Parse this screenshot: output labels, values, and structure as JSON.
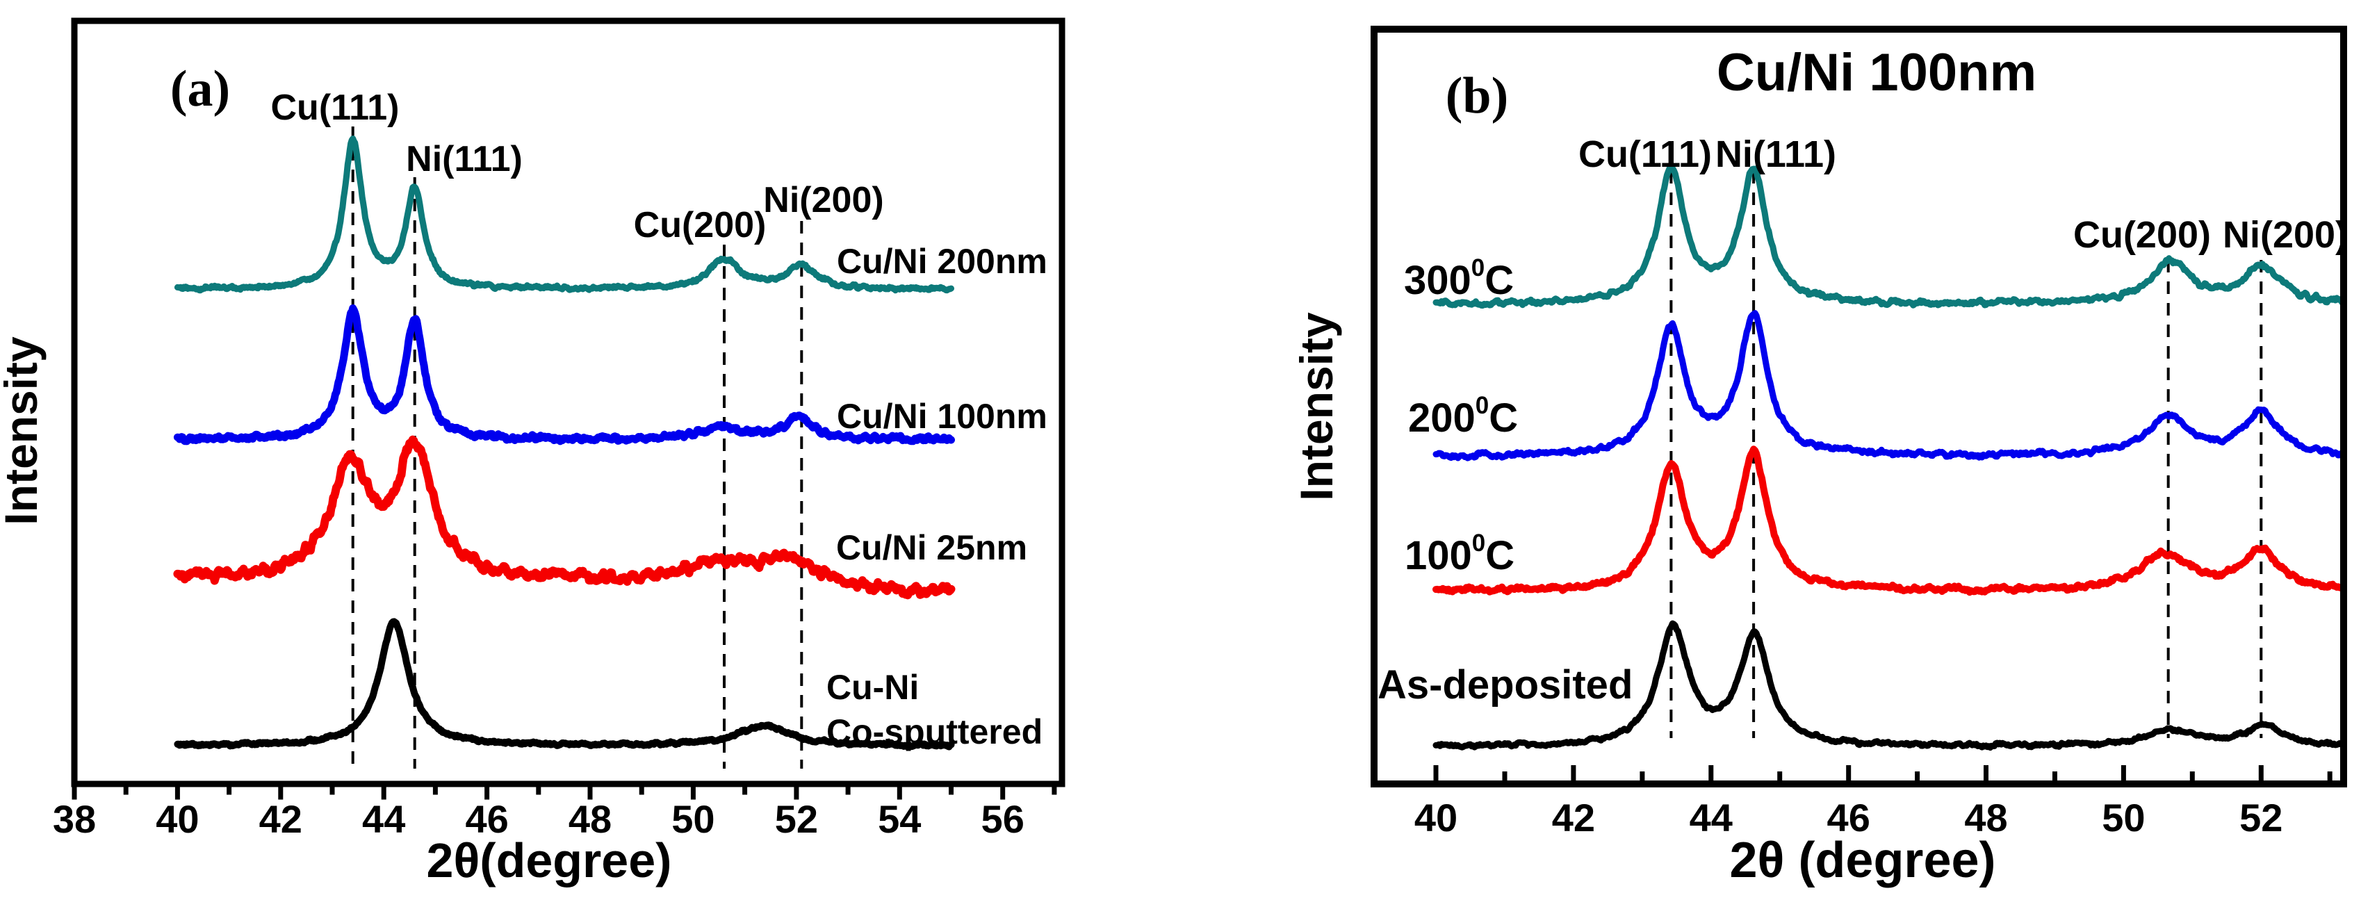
{
  "figure": {
    "background": "#ffffff",
    "description_colors": {
      "teal": "#0d7a7a",
      "blue": "#0000ee",
      "red": "#f50000",
      "black": "#000000"
    }
  },
  "chart_data": [
    {
      "panel": "a",
      "type": "line",
      "panel_label": "(a)",
      "title": "",
      "xlabel": "2θ(degree)",
      "ylabel": "Intensity",
      "xlim": [
        38,
        57.15
      ],
      "x_major_ticks": [
        38,
        40,
        42,
        44,
        46,
        48,
        50,
        52,
        54,
        56
      ],
      "x_minor_step": 1,
      "x_data_range": [
        40,
        55
      ],
      "grid": false,
      "y_axis_note": "arbitrary stacked intensity, no y ticks",
      "dashed_lines": [
        {
          "x": 43.4,
          "label": "Cu(111)"
        },
        {
          "x": 44.6,
          "label": "Ni(111)"
        },
        {
          "x": 50.6,
          "label": "Cu(200)"
        },
        {
          "x": 52.1,
          "label": "Ni(200)"
        }
      ],
      "series": [
        {
          "name": "Cu/Ni 200nm",
          "color": "#0d7a7a",
          "baseline_frac": 0.648,
          "peaks": [
            {
              "center": 43.4,
              "height": 0.192,
              "hwhm": 0.22
            },
            {
              "center": 44.6,
              "height": 0.13,
              "hwhm": 0.21
            },
            {
              "center": 50.6,
              "height": 0.039,
              "hwhm": 0.36
            },
            {
              "center": 52.1,
              "height": 0.03,
              "hwhm": 0.36
            }
          ]
        },
        {
          "name": "Cu/Ni 100nm",
          "color": "#0000ee",
          "baseline_frac": 0.451,
          "peaks": [
            {
              "center": 43.4,
              "height": 0.164,
              "hwhm": 0.24
            },
            {
              "center": 44.6,
              "height": 0.152,
              "hwhm": 0.22
            },
            {
              "center": 50.55,
              "height": 0.016,
              "hwhm": 0.5
            },
            {
              "center": 52.05,
              "height": 0.028,
              "hwhm": 0.33
            }
          ]
        },
        {
          "name": "Cu/Ni 25nm",
          "color": "#f50000",
          "baseline_frac": 0.268,
          "peaks": [
            {
              "center": 43.35,
              "height": 0.145,
              "hwhm": 0.45
            },
            {
              "center": 44.6,
              "height": 0.165,
              "hwhm": 0.42
            },
            {
              "center": 50.55,
              "height": 0.02,
              "hwhm": 0.9
            },
            {
              "center": 51.9,
              "height": 0.03,
              "hwhm": 0.75
            },
            {
              "center": 54.5,
              "height": -0.02,
              "hwhm": 2.5
            }
          ]
        },
        {
          "name": "Cu-Ni Co-sputtered",
          "name_lines": [
            "Cu-Ni",
            "Co-sputtered"
          ],
          "color": "#000000",
          "baseline_frac": 0.05,
          "peaks": [
            {
              "center": 44.2,
              "height": 0.164,
              "hwhm": 0.34
            },
            {
              "center": 51.35,
              "height": 0.026,
              "hwhm": 0.6
            }
          ]
        }
      ]
    },
    {
      "panel": "b",
      "type": "line",
      "panel_label": "(b)",
      "title": "Cu/Ni 100nm",
      "xlabel": "2θ (degree)",
      "ylabel": "Intensity",
      "xlim": [
        39.1,
        53.2
      ],
      "x_major_ticks": [
        40,
        42,
        44,
        46,
        48,
        50,
        52
      ],
      "x_minor_step": 1,
      "x_data_range": [
        40,
        53.18
      ],
      "grid": false,
      "y_axis_note": "arbitrary stacked intensity, no y ticks",
      "dashed_lines": [
        {
          "x": 43.42,
          "label": "Cu(111)"
        },
        {
          "x": 44.62,
          "label": "Ni(111)"
        },
        {
          "x": 50.65,
          "label": "Cu(200)"
        },
        {
          "x": 52.0,
          "label": "Ni(200)"
        }
      ],
      "series": [
        {
          "name": "300°C",
          "label_parts": {
            "base": "300",
            "sup": "0",
            "unit": "C"
          },
          "color": "#0d7a7a",
          "baseline_frac": 0.635,
          "peaks": [
            {
              "center": 43.42,
              "height": 0.176,
              "hwhm": 0.24
            },
            {
              "center": 44.62,
              "height": 0.176,
              "hwhm": 0.23
            },
            {
              "center": 50.68,
              "height": 0.056,
              "hwhm": 0.35
            },
            {
              "center": 52.02,
              "height": 0.049,
              "hwhm": 0.32
            }
          ]
        },
        {
          "name": "200°C",
          "label_parts": {
            "base": "200",
            "sup": "0",
            "unit": "C"
          },
          "color": "#0000ee",
          "baseline_frac": 0.434,
          "peaks": [
            {
              "center": 43.42,
              "height": 0.168,
              "hwhm": 0.25
            },
            {
              "center": 44.62,
              "height": 0.183,
              "hwhm": 0.24
            },
            {
              "center": 50.65,
              "height": 0.051,
              "hwhm": 0.37
            },
            {
              "center": 52.0,
              "height": 0.055,
              "hwhm": 0.32
            }
          ]
        },
        {
          "name": "100°C",
          "label_parts": {
            "base": "100",
            "sup": "0",
            "unit": "C"
          },
          "color": "#f50000",
          "baseline_frac": 0.255,
          "peaks": [
            {
              "center": 43.42,
              "height": 0.161,
              "hwhm": 0.26
            },
            {
              "center": 44.62,
              "height": 0.177,
              "hwhm": 0.25
            },
            {
              "center": 50.6,
              "height": 0.048,
              "hwhm": 0.45
            },
            {
              "center": 52.0,
              "height": 0.052,
              "hwhm": 0.34
            }
          ]
        },
        {
          "name": "As-deposited",
          "color": "#000000",
          "baseline_frac": 0.049,
          "peaks": [
            {
              "center": 43.45,
              "height": 0.155,
              "hwhm": 0.27
            },
            {
              "center": 44.63,
              "height": 0.145,
              "hwhm": 0.26
            },
            {
              "center": 50.7,
              "height": 0.022,
              "hwhm": 0.45
            },
            {
              "center": 52.05,
              "height": 0.026,
              "hwhm": 0.34
            }
          ]
        }
      ]
    }
  ]
}
